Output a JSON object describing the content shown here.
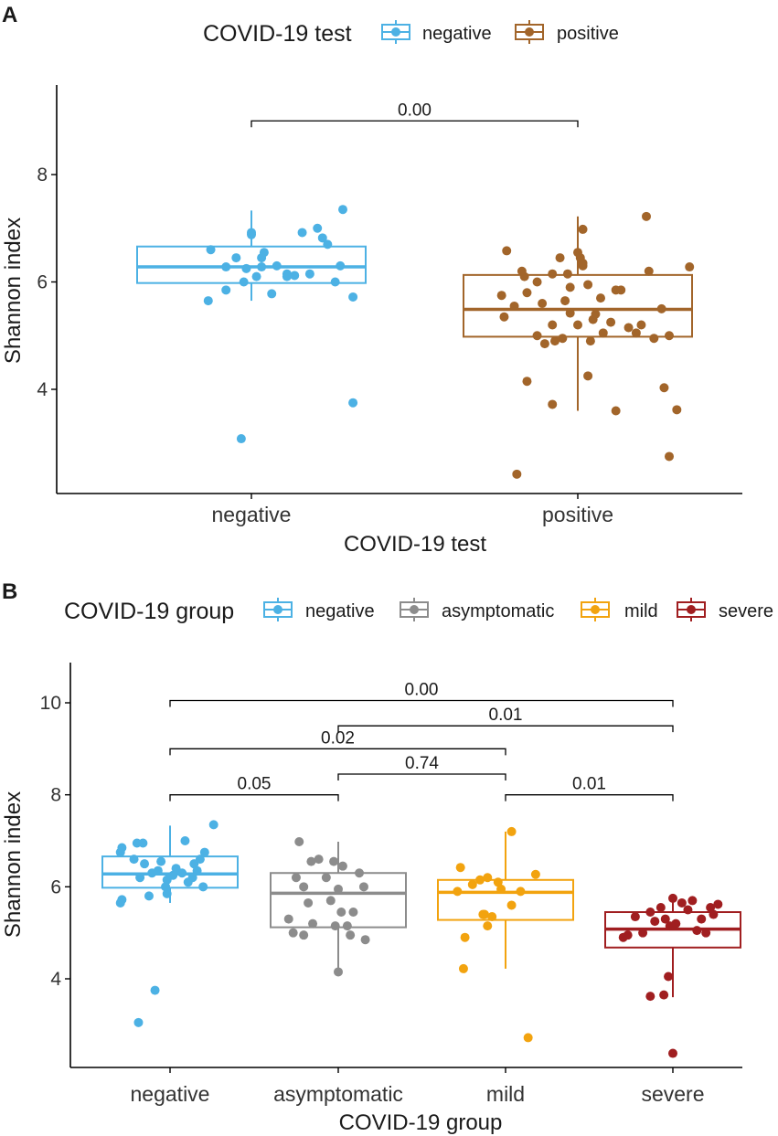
{
  "colors": {
    "negative": "#4cb1e4",
    "asymptomatic": "#8c8c8c",
    "mild": "#f2a30f",
    "severe": "#a01e20",
    "positive": "#a2652a",
    "axis": "#000000"
  },
  "chart_data": [
    {
      "id": "A",
      "type": "box",
      "panel_label": "A",
      "legend_title": "COVID-19 test",
      "legend_position": "top",
      "xlabel": "COVID-19 test",
      "ylabel": "Shannon index",
      "ylim": [
        2.2,
        9.6
      ],
      "yticks": [
        4,
        6,
        8
      ],
      "categories": [
        "negative",
        "positive"
      ],
      "series": [
        {
          "name": "negative",
          "color_key": "negative",
          "box": {
            "whisker_low": 5.65,
            "q1": 5.98,
            "median": 6.28,
            "q3": 6.66,
            "whisker_high": 7.33
          },
          "points": [
            [
              -0.17,
              5.65
            ],
            [
              -0.1,
              5.85
            ],
            [
              -0.06,
              6.45
            ],
            [
              -0.16,
              6.6
            ],
            [
              -0.1,
              6.28
            ],
            [
              -0.02,
              6.25
            ],
            [
              0.04,
              6.28
            ],
            [
              0.0,
              6.92
            ],
            [
              0.05,
              6.55
            ],
            [
              0.04,
              6.45
            ],
            [
              -0.03,
              6.0
            ],
            [
              0.02,
              6.1
            ],
            [
              0.08,
              5.78
            ],
            [
              0.1,
              6.3
            ],
            [
              0.14,
              6.15
            ],
            [
              0.17,
              6.12
            ],
            [
              0.2,
              6.92
            ],
            [
              0.26,
              7.0
            ],
            [
              0.28,
              6.82
            ],
            [
              0.3,
              6.7
            ],
            [
              0.14,
              6.1
            ],
            [
              0.23,
              6.15
            ],
            [
              0.33,
              6.0
            ],
            [
              0.35,
              6.3
            ],
            [
              0.4,
              5.72
            ],
            [
              0.36,
              7.35
            ],
            [
              0.4,
              3.75
            ],
            [
              -0.04,
              3.08
            ],
            [
              0.0,
              6.88
            ]
          ]
        },
        {
          "name": "positive",
          "color_key": "positive",
          "box": {
            "whisker_low": 3.6,
            "q1": 4.98,
            "median": 5.49,
            "q3": 6.13,
            "whisker_high": 7.22
          },
          "points": [
            [
              -0.3,
              5.75
            ],
            [
              -0.29,
              5.35
            ],
            [
              -0.25,
              5.55
            ],
            [
              -0.2,
              5.8
            ],
            [
              -0.21,
              6.1
            ],
            [
              -0.16,
              6.0
            ],
            [
              -0.14,
              5.6
            ],
            [
              -0.13,
              4.85
            ],
            [
              -0.1,
              5.2
            ],
            [
              -0.05,
              5.65
            ],
            [
              -0.03,
              5.9
            ],
            [
              0.0,
              5.2
            ],
            [
              0.01,
              6.45
            ],
            [
              0.02,
              6.3
            ],
            [
              -0.04,
              6.15
            ],
            [
              -0.22,
              6.2
            ],
            [
              -0.1,
              6.15
            ],
            [
              -0.16,
              5.0
            ],
            [
              -0.06,
              4.95
            ],
            [
              -0.09,
              4.9
            ],
            [
              0.05,
              4.9
            ],
            [
              0.06,
              5.3
            ],
            [
              0.07,
              5.4
            ],
            [
              0.09,
              5.7
            ],
            [
              0.1,
              5.05
            ],
            [
              0.13,
              5.25
            ],
            [
              0.15,
              5.85
            ],
            [
              0.17,
              5.85
            ],
            [
              0.2,
              5.15
            ],
            [
              0.23,
              5.05
            ],
            [
              0.25,
              5.2
            ],
            [
              0.28,
              6.2
            ],
            [
              0.3,
              4.95
            ],
            [
              0.33,
              5.5
            ],
            [
              0.36,
              5.0
            ],
            [
              0.44,
              6.28
            ],
            [
              0.27,
              7.22
            ],
            [
              0.02,
              6.98
            ],
            [
              0.0,
              6.55
            ],
            [
              0.02,
              6.35
            ],
            [
              -0.07,
              6.45
            ],
            [
              0.04,
              5.95
            ],
            [
              -0.03,
              5.42
            ],
            [
              0.04,
              4.25
            ],
            [
              -0.2,
              4.15
            ],
            [
              -0.28,
              6.58
            ],
            [
              0.15,
              3.6
            ],
            [
              0.34,
              4.03
            ],
            [
              0.39,
              3.62
            ],
            [
              0.36,
              2.75
            ],
            [
              -0.24,
              2.42
            ],
            [
              -0.1,
              3.72
            ]
          ]
        }
      ],
      "comparisons": [
        {
          "from": "negative",
          "to": "positive",
          "label": "0.00",
          "y": 9.0
        }
      ]
    },
    {
      "id": "B",
      "type": "box",
      "panel_label": "B",
      "legend_title": "COVID-19 group",
      "legend_position": "top",
      "xlabel": "COVID-19 group",
      "ylabel": "Shannon index",
      "ylim": [
        1.9,
        10.8
      ],
      "yticks": [
        4,
        6,
        8,
        10
      ],
      "categories": [
        "negative",
        "asymptomatic",
        "mild",
        "severe"
      ],
      "series": [
        {
          "name": "negative",
          "color_key": "negative",
          "box": {
            "whisker_low": 5.65,
            "q1": 5.98,
            "median": 6.28,
            "q3": 6.66,
            "whisker_high": 7.33
          },
          "points": [
            [
              -0.33,
              5.65
            ],
            [
              -0.32,
              5.72
            ],
            [
              -0.33,
              6.75
            ],
            [
              -0.32,
              6.85
            ],
            [
              -0.24,
              6.6
            ],
            [
              -0.22,
              6.95
            ],
            [
              -0.18,
              6.95
            ],
            [
              -0.2,
              6.2
            ],
            [
              -0.17,
              6.5
            ],
            [
              -0.12,
              6.3
            ],
            [
              -0.08,
              6.35
            ],
            [
              -0.06,
              6.55
            ],
            [
              -0.03,
              6.0
            ],
            [
              -0.02,
              6.15
            ],
            [
              0.02,
              6.25
            ],
            [
              0.04,
              6.4
            ],
            [
              0.08,
              6.3
            ],
            [
              0.12,
              6.1
            ],
            [
              0.15,
              6.2
            ],
            [
              0.16,
              6.5
            ],
            [
              0.2,
              6.6
            ],
            [
              0.18,
              6.35
            ],
            [
              0.22,
              6.0
            ],
            [
              0.23,
              6.75
            ],
            [
              0.1,
              7.0
            ],
            [
              0.29,
              7.35
            ],
            [
              -0.14,
              5.8
            ],
            [
              -0.02,
              5.85
            ],
            [
              -0.1,
              3.75
            ],
            [
              -0.21,
              3.05
            ]
          ]
        },
        {
          "name": "asymptomatic",
          "color_key": "asymptomatic",
          "box": {
            "whisker_low": 4.15,
            "q1": 5.12,
            "median": 5.86,
            "q3": 6.3,
            "whisker_high": 6.98
          },
          "points": [
            [
              -0.33,
              5.3
            ],
            [
              -0.3,
              5.0
            ],
            [
              -0.23,
              4.95
            ],
            [
              -0.28,
              6.2
            ],
            [
              -0.23,
              6.0
            ],
            [
              -0.2,
              5.65
            ],
            [
              -0.18,
              6.55
            ],
            [
              -0.13,
              6.6
            ],
            [
              -0.08,
              6.2
            ],
            [
              -0.05,
              5.7
            ],
            [
              -0.03,
              6.55
            ],
            [
              -0.02,
              5.15
            ],
            [
              0.0,
              5.95
            ],
            [
              0.02,
              5.45
            ],
            [
              0.06,
              5.15
            ],
            [
              0.08,
              4.95
            ],
            [
              0.1,
              5.45
            ],
            [
              0.14,
              6.3
            ],
            [
              0.17,
              6.0
            ],
            [
              0.18,
              4.85
            ],
            [
              -0.17,
              5.2
            ],
            [
              0.03,
              6.45
            ],
            [
              -0.26,
              6.98
            ],
            [
              0.0,
              4.15
            ]
          ]
        },
        {
          "name": "mild",
          "color_key": "mild",
          "box": {
            "whisker_low": 4.22,
            "q1": 5.28,
            "median": 5.88,
            "q3": 6.15,
            "whisker_high": 7.2
          },
          "points": [
            [
              -0.3,
              6.42
            ],
            [
              -0.22,
              6.05
            ],
            [
              -0.17,
              6.15
            ],
            [
              -0.12,
              6.2
            ],
            [
              -0.05,
              6.1
            ],
            [
              -0.03,
              5.95
            ],
            [
              0.04,
              5.6
            ],
            [
              0.1,
              5.9
            ],
            [
              0.2,
              6.27
            ],
            [
              -0.32,
              5.9
            ],
            [
              -0.27,
              4.9
            ],
            [
              -0.14,
              5.4
            ],
            [
              -0.09,
              5.35
            ],
            [
              -0.12,
              5.15
            ],
            [
              -0.15,
              5.4
            ],
            [
              -0.28,
              4.22
            ],
            [
              0.04,
              7.2
            ],
            [
              0.15,
              2.72
            ]
          ]
        },
        {
          "name": "severe",
          "color_key": "severe",
          "box": {
            "whisker_low": 3.6,
            "q1": 4.68,
            "median": 5.08,
            "q3": 5.45,
            "whisker_high": 5.7
          },
          "points": [
            [
              -0.33,
              4.9
            ],
            [
              -0.25,
              5.35
            ],
            [
              -0.2,
              5.0
            ],
            [
              -0.15,
              5.45
            ],
            [
              -0.12,
              5.25
            ],
            [
              -0.08,
              5.55
            ],
            [
              -0.05,
              5.3
            ],
            [
              -0.02,
              5.15
            ],
            [
              0.02,
              5.2
            ],
            [
              0.06,
              5.65
            ],
            [
              0.1,
              5.5
            ],
            [
              0.13,
              5.7
            ],
            [
              0.16,
              5.05
            ],
            [
              0.19,
              5.3
            ],
            [
              0.22,
              5.0
            ],
            [
              0.25,
              5.55
            ],
            [
              0.27,
              5.4
            ],
            [
              0.3,
              5.62
            ],
            [
              -0.3,
              4.95
            ],
            [
              0.0,
              5.75
            ],
            [
              -0.03,
              4.05
            ],
            [
              -0.15,
              3.62
            ],
            [
              -0.06,
              3.65
            ],
            [
              0.0,
              2.38
            ]
          ]
        }
      ],
      "comparisons": [
        {
          "from": "negative",
          "to": "asymptomatic",
          "label": "0.05",
          "y": 8.0
        },
        {
          "from": "asymptomatic",
          "to": "mild",
          "label": "0.74",
          "y": 8.45
        },
        {
          "from": "mild",
          "to": "severe",
          "label": "0.01",
          "y": 8.0
        },
        {
          "from": "negative",
          "to": "mild",
          "label": "0.02",
          "y": 9.0
        },
        {
          "from": "asymptomatic",
          "to": "severe",
          "label": "0.01",
          "y": 9.5
        },
        {
          "from": "negative",
          "to": "severe",
          "label": "0.00",
          "y": 10.05
        }
      ]
    }
  ]
}
